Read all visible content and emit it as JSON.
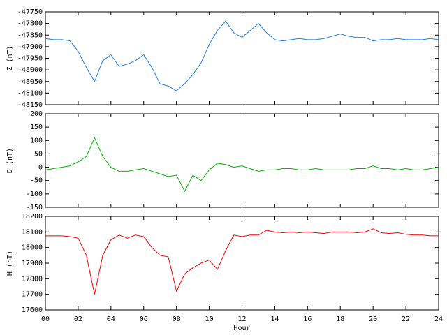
{
  "chart_data": [
    {
      "type": "line",
      "ylabel": "Z (nT)",
      "series": [
        {
          "color": "#1e7fe8",
          "values": [
            -47865,
            -47870,
            -47870,
            -47875,
            -47920,
            -47990,
            -48050,
            -47960,
            -47935,
            -47985,
            -47975,
            -47960,
            -47935,
            -47990,
            -48060,
            -48070,
            -48090,
            -48060,
            -48020,
            -47970,
            -47890,
            -47830,
            -47790,
            -47840,
            -47860,
            -47830,
            -47800,
            -47840,
            -47870,
            -47875,
            -47870,
            -47865,
            -47870,
            -47870,
            -47865,
            -47855,
            -47845,
            -47855,
            -47860,
            -47860,
            -47875,
            -47870,
            -47870,
            -47865,
            -47870,
            -47870,
            -47870,
            -47865,
            -47870
          ]
        }
      ],
      "x": [
        0,
        0.5,
        1,
        1.5,
        2,
        2.5,
        3,
        3.5,
        4,
        4.5,
        5,
        5.5,
        6,
        6.5,
        7,
        7.5,
        8,
        8.5,
        9,
        9.5,
        10,
        10.5,
        11,
        11.5,
        12,
        12.5,
        13,
        13.5,
        14,
        14.5,
        15,
        15.5,
        16,
        16.5,
        17,
        17.5,
        18,
        18.5,
        19,
        19.5,
        20,
        20.5,
        21,
        21.5,
        22,
        22.5,
        23,
        23.5,
        24
      ],
      "xlim": [
        0,
        24
      ],
      "xticks": [
        0,
        2,
        4,
        6,
        8,
        10,
        12,
        14,
        16,
        18,
        20,
        22,
        24
      ],
      "ylim": [
        -48150,
        -47750
      ],
      "yticks": [
        -48150,
        -48100,
        -48050,
        -48000,
        -47950,
        -47900,
        -47850,
        -47800,
        -47750
      ]
    },
    {
      "type": "line",
      "ylabel": "D (nT)",
      "series": [
        {
          "color": "#00b400",
          "values": [
            -10,
            -5,
            0,
            5,
            20,
            40,
            110,
            40,
            0,
            -15,
            -15,
            -10,
            -5,
            -15,
            -25,
            -35,
            -30,
            -90,
            -30,
            -50,
            -10,
            15,
            10,
            0,
            5,
            -5,
            -15,
            -10,
            -10,
            -5,
            -5,
            -10,
            -10,
            -5,
            -10,
            -10,
            -10,
            -10,
            -5,
            -5,
            5,
            -5,
            -5,
            -10,
            -5,
            -10,
            -10,
            -5,
            0
          ]
        }
      ],
      "x": [
        0,
        0.5,
        1,
        1.5,
        2,
        2.5,
        3,
        3.5,
        4,
        4.5,
        5,
        5.5,
        6,
        6.5,
        7,
        7.5,
        8,
        8.5,
        9,
        9.5,
        10,
        10.5,
        11,
        11.5,
        12,
        12.5,
        13,
        13.5,
        14,
        14.5,
        15,
        15.5,
        16,
        16.5,
        17,
        17.5,
        18,
        18.5,
        19,
        19.5,
        20,
        20.5,
        21,
        21.5,
        22,
        22.5,
        23,
        23.5,
        24
      ],
      "xlim": [
        0,
        24
      ],
      "xticks": [
        0,
        2,
        4,
        6,
        8,
        10,
        12,
        14,
        16,
        18,
        20,
        22,
        24
      ],
      "ylim": [
        -150,
        200
      ],
      "yticks": [
        -150,
        -100,
        -50,
        0,
        50,
        100,
        150,
        200
      ]
    },
    {
      "type": "line",
      "ylabel": "H (nT)",
      "xlabel": "Hour",
      "series": [
        {
          "color": "#f00000",
          "values": [
            18075,
            18075,
            18075,
            18070,
            18060,
            17950,
            17700,
            17950,
            18050,
            18080,
            18060,
            18080,
            18070,
            18000,
            17950,
            17940,
            17720,
            17830,
            17870,
            17900,
            17920,
            17860,
            17980,
            18080,
            18070,
            18080,
            18080,
            18110,
            18100,
            18095,
            18100,
            18095,
            18100,
            18095,
            18090,
            18100,
            18100,
            18100,
            18095,
            18100,
            18120,
            18095,
            18090,
            18095,
            18085,
            18080,
            18080,
            18075,
            18075
          ]
        }
      ],
      "x": [
        0,
        0.5,
        1,
        1.5,
        2,
        2.5,
        3,
        3.5,
        4,
        4.5,
        5,
        5.5,
        6,
        6.5,
        7,
        7.5,
        8,
        8.5,
        9,
        9.5,
        10,
        10.5,
        11,
        11.5,
        12,
        12.5,
        13,
        13.5,
        14,
        14.5,
        15,
        15.5,
        16,
        16.5,
        17,
        17.5,
        18,
        18.5,
        19,
        19.5,
        20,
        20.5,
        21,
        21.5,
        22,
        22.5,
        23,
        23.5,
        24
      ],
      "xlim": [
        0,
        24
      ],
      "xticks": [
        {
          "value": 0,
          "label": "00"
        },
        {
          "value": 2,
          "label": "02"
        },
        {
          "value": 4,
          "label": "04"
        },
        {
          "value": 6,
          "label": "06"
        },
        {
          "value": 8,
          "label": "08"
        },
        {
          "value": 10,
          "label": "10"
        },
        {
          "value": 12,
          "label": "12"
        },
        {
          "value": 14,
          "label": "14"
        },
        {
          "value": 16,
          "label": "16"
        },
        {
          "value": 18,
          "label": "18"
        },
        {
          "value": 20,
          "label": "20"
        },
        {
          "value": 22,
          "label": "22"
        },
        {
          "value": 24,
          "label": "24"
        }
      ],
      "ylim": [
        17600,
        18200
      ],
      "yticks": [
        17600,
        17700,
        17800,
        17900,
        18000,
        18100,
        18200
      ]
    }
  ]
}
